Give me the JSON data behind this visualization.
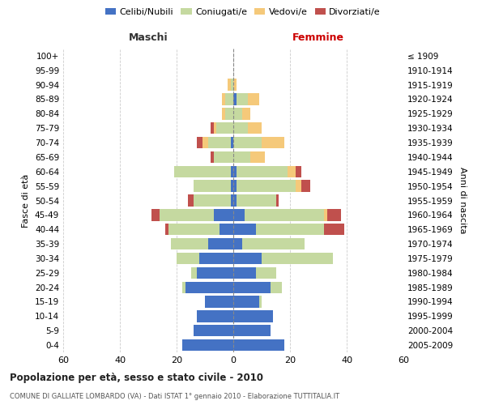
{
  "age_groups": [
    "0-4",
    "5-9",
    "10-14",
    "15-19",
    "20-24",
    "25-29",
    "30-34",
    "35-39",
    "40-44",
    "45-49",
    "50-54",
    "55-59",
    "60-64",
    "65-69",
    "70-74",
    "75-79",
    "80-84",
    "85-89",
    "90-94",
    "95-99",
    "100+"
  ],
  "birth_years": [
    "2005-2009",
    "2000-2004",
    "1995-1999",
    "1990-1994",
    "1985-1989",
    "1980-1984",
    "1975-1979",
    "1970-1974",
    "1965-1969",
    "1960-1964",
    "1955-1959",
    "1950-1954",
    "1945-1949",
    "1940-1944",
    "1935-1939",
    "1930-1934",
    "1925-1929",
    "1920-1924",
    "1915-1919",
    "1910-1914",
    "≤ 1909"
  ],
  "male_celibi": [
    18,
    14,
    13,
    10,
    17,
    13,
    12,
    9,
    5,
    7,
    1,
    1,
    1,
    0,
    1,
    0,
    0,
    0,
    0,
    0,
    0
  ],
  "male_coniugati": [
    0,
    0,
    0,
    0,
    1,
    2,
    8,
    13,
    18,
    19,
    13,
    13,
    20,
    7,
    8,
    6,
    3,
    3,
    1,
    0,
    0
  ],
  "male_vedovi": [
    0,
    0,
    0,
    0,
    0,
    0,
    0,
    0,
    0,
    0,
    0,
    0,
    0,
    0,
    2,
    1,
    1,
    1,
    1,
    0,
    0
  ],
  "male_divorziati": [
    0,
    0,
    0,
    0,
    0,
    0,
    0,
    0,
    1,
    3,
    2,
    0,
    0,
    1,
    2,
    1,
    0,
    0,
    0,
    0,
    0
  ],
  "female_celibi": [
    18,
    13,
    14,
    9,
    13,
    8,
    10,
    3,
    8,
    4,
    1,
    1,
    1,
    0,
    0,
    0,
    0,
    1,
    0,
    0,
    0
  ],
  "female_coniugati": [
    0,
    0,
    0,
    1,
    4,
    7,
    25,
    22,
    24,
    28,
    14,
    21,
    18,
    6,
    10,
    5,
    3,
    4,
    0,
    0,
    0
  ],
  "female_vedovi": [
    0,
    0,
    0,
    0,
    0,
    0,
    0,
    0,
    0,
    1,
    0,
    2,
    3,
    5,
    8,
    5,
    3,
    4,
    1,
    0,
    0
  ],
  "female_divorziati": [
    0,
    0,
    0,
    0,
    0,
    0,
    0,
    0,
    7,
    5,
    1,
    3,
    2,
    0,
    0,
    0,
    0,
    0,
    0,
    0,
    0
  ],
  "colors": {
    "celibi": "#4472c4",
    "coniugati": "#c5d9a0",
    "vedovi": "#f5c97a",
    "divorziati": "#c0504d"
  },
  "title": "Popolazione per età, sesso e stato civile - 2010",
  "subtitle": "COMUNE DI GALLIATE LOMBARDO (VA) - Dati ISTAT 1° gennaio 2010 - Elaborazione TUTTITALIA.IT",
  "label_maschi": "Maschi",
  "label_femmine": "Femmine",
  "ylabel_left": "Fasce di età",
  "ylabel_right": "Anni di nascita",
  "xlim": 60,
  "background_color": "#ffffff",
  "grid_color": "#cccccc",
  "legend_labels": [
    "Celibi/Nubili",
    "Coniugati/e",
    "Vedovi/e",
    "Divorziati/e"
  ]
}
